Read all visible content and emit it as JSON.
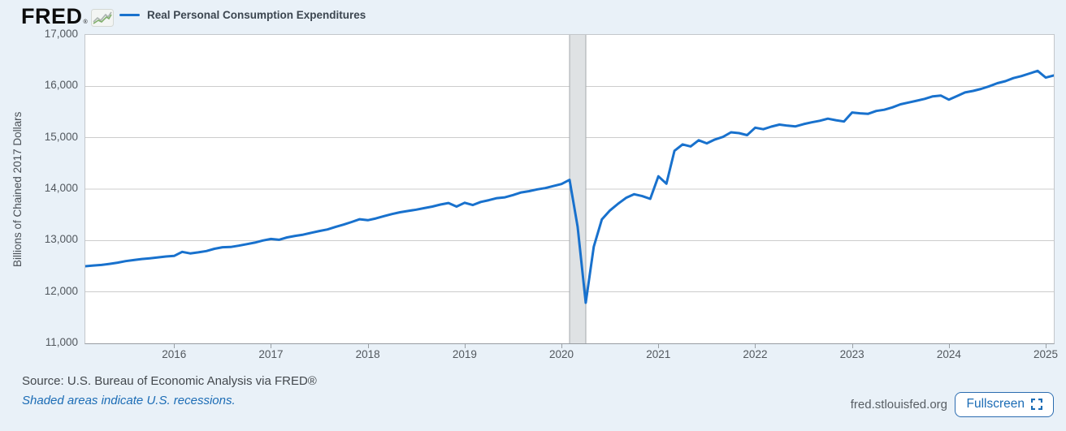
{
  "header": {
    "logo_text": "FRED",
    "logo_registered": "®",
    "legend_label": "Real Personal Consumption Expenditures"
  },
  "chart_data": {
    "type": "line",
    "title": "Real Personal Consumption Expenditures",
    "ylabel": "Billions of Chained 2017 Dollars",
    "xlabel": "",
    "ylim": [
      11000,
      17000
    ],
    "yticks": [
      "17,000",
      "16,000",
      "15,000",
      "14,000",
      "13,000",
      "12,000",
      "11,000"
    ],
    "xticks": [
      "2016",
      "2017",
      "2018",
      "2019",
      "2020",
      "2021",
      "2022",
      "2023",
      "2024",
      "2025"
    ],
    "x_range": {
      "start": "2015-02",
      "end": "2025-02",
      "frequency": "monthly"
    },
    "grid": "horizontal",
    "legend_position": "top-left",
    "line_color": "#1871cd",
    "recession_band": {
      "start": "2020-02",
      "end": "2020-04",
      "start_index": 60,
      "end_index": 62,
      "fill": "#dfe2e4",
      "edge": "#a5a9ad"
    },
    "series": [
      {
        "name": "Real Personal Consumption Expenditures",
        "values": [
          12500,
          12515,
          12525,
          12545,
          12570,
          12600,
          12620,
          12640,
          12655,
          12672,
          12690,
          12700,
          12780,
          12750,
          12770,
          12795,
          12840,
          12870,
          12875,
          12900,
          12930,
          12960,
          13000,
          13030,
          13015,
          13060,
          13090,
          13115,
          13150,
          13185,
          13215,
          13265,
          13310,
          13360,
          13415,
          13395,
          13430,
          13475,
          13515,
          13550,
          13575,
          13600,
          13630,
          13660,
          13700,
          13730,
          13660,
          13735,
          13690,
          13750,
          13785,
          13825,
          13840,
          13885,
          13935,
          13960,
          13995,
          14020,
          14060,
          14100,
          14180,
          13270,
          11790,
          12880,
          13410,
          13585,
          13715,
          13830,
          13900,
          13865,
          13810,
          14250,
          14105,
          14745,
          14870,
          14830,
          14950,
          14890,
          14965,
          15015,
          15105,
          15090,
          15050,
          15195,
          15165,
          15215,
          15255,
          15235,
          15220,
          15265,
          15300,
          15330,
          15370,
          15340,
          15315,
          15490,
          15475,
          15465,
          15520,
          15545,
          15590,
          15650,
          15685,
          15720,
          15755,
          15805,
          15820,
          15740,
          15810,
          15880,
          15910,
          15950,
          16000,
          16060,
          16100,
          16160,
          16200,
          16250,
          16300,
          16170,
          16210
        ]
      }
    ]
  },
  "footer": {
    "source": "Source: U.S. Bureau of Economic Analysis via FRED®",
    "note": "Shaded areas indicate U.S. recessions.",
    "site": "fred.stlouisfed.org",
    "fullscreen_label": "Fullscreen"
  },
  "colors": {
    "page_bg": "#e9f1f8",
    "plot_bg": "#ffffff",
    "grid": "#cccccc",
    "axis_border": "#c3c7cb",
    "tick_text": "#52585e",
    "line": "#1871cd",
    "link_blue": "#1b6cb5",
    "recession_fill": "#dfe2e4"
  }
}
